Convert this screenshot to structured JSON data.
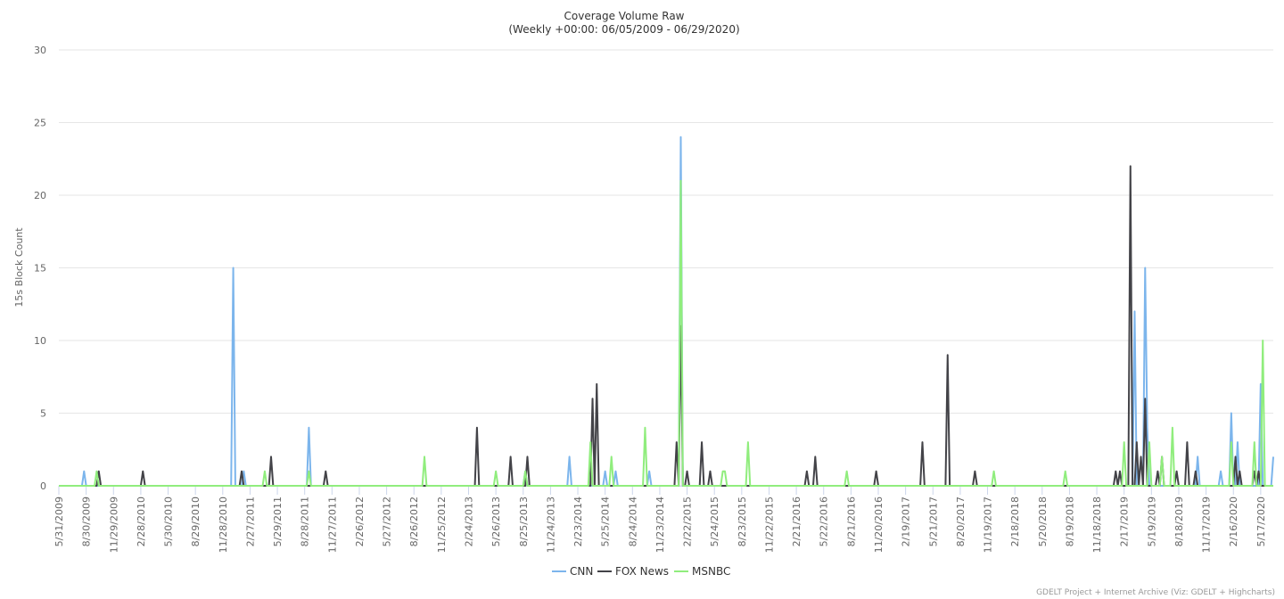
{
  "chart_data": {
    "type": "line",
    "title": "Coverage Volume Raw",
    "subtitle": "(Weekly +00:00: 06/05/2009 - 06/29/2020)",
    "y_label": "15s Block Count",
    "credits": "GDELT Project + Internet Archive (Viz: GDELT + Highcharts)",
    "grid": true,
    "legend": "bottom",
    "ylim": [
      0,
      30
    ],
    "yticks": [
      0,
      5,
      10,
      15,
      20,
      25,
      30
    ],
    "xlim": [
      "5/31/2009",
      "6/28/2020"
    ],
    "xticks": [
      "5/31/2009",
      "8/30/2009",
      "11/29/2009",
      "2/28/2010",
      "5/30/2010",
      "8/29/2010",
      "11/28/2010",
      "2/27/2011",
      "5/29/2011",
      "8/28/2011",
      "11/27/2011",
      "2/26/2012",
      "5/27/2012",
      "8/26/2012",
      "11/25/2012",
      "2/24/2013",
      "5/26/2013",
      "8/25/2013",
      "11/24/2013",
      "2/23/2014",
      "5/25/2014",
      "8/24/2014",
      "11/23/2014",
      "2/22/2015",
      "5/24/2015",
      "8/23/2015",
      "11/22/2015",
      "2/21/2016",
      "5/22/2016",
      "8/21/2016",
      "11/20/2016",
      "2/19/2017",
      "5/21/2017",
      "8/20/2017",
      "11/19/2017",
      "2/18/2018",
      "5/20/2018",
      "8/19/2018",
      "11/18/2018",
      "2/17/2019",
      "5/19/2019",
      "8/18/2019",
      "11/17/2019",
      "2/16/2020",
      "5/17/2020"
    ],
    "x": [
      "5/31/2009",
      "8/16/2009",
      "8/23/2009",
      "8/30/2009",
      "9/27/2009",
      "10/4/2009",
      "10/11/2009",
      "10/18/2009",
      "2/28/2010",
      "3/7/2010",
      "3/14/2010",
      "12/26/2010",
      "1/2/2011",
      "1/9/2011",
      "1/23/2011",
      "1/30/2011",
      "2/6/2011",
      "2/13/2011",
      "4/10/2011",
      "4/17/2011",
      "4/24/2011",
      "5/1/2011",
      "5/8/2011",
      "5/15/2011",
      "9/4/2011",
      "9/11/2011",
      "9/18/2011",
      "10/30/2011",
      "11/6/2011",
      "11/13/2011",
      "9/23/2012",
      "9/30/2012",
      "10/7/2012",
      "3/17/2013",
      "3/24/2013",
      "3/31/2013",
      "5/19/2013",
      "5/26/2013",
      "6/2/2013",
      "7/7/2013",
      "7/14/2013",
      "7/21/2013",
      "8/25/2013",
      "9/1/2013",
      "9/8/2013",
      "9/15/2013",
      "1/19/2014",
      "1/26/2014",
      "2/2/2014",
      "3/30/2014",
      "4/6/2014",
      "4/13/2014",
      "4/20/2014",
      "4/27/2014",
      "5/4/2014",
      "5/18/2014",
      "5/25/2014",
      "6/1/2014",
      "6/8/2014",
      "6/15/2014",
      "6/22/2014",
      "6/29/2014",
      "7/6/2014",
      "9/28/2014",
      "10/5/2014",
      "10/12/2014",
      "10/19/2014",
      "10/26/2014",
      "1/11/2015",
      "1/18/2015",
      "1/25/2015",
      "2/1/2015",
      "2/8/2015",
      "2/15/2015",
      "2/22/2015",
      "3/1/2015",
      "4/5/2015",
      "4/12/2015",
      "4/19/2015",
      "5/3/2015",
      "5/10/2015",
      "5/17/2015",
      "6/14/2015",
      "6/21/2015",
      "6/28/2015",
      "7/5/2015",
      "9/6/2015",
      "9/13/2015",
      "9/20/2015",
      "3/20/2016",
      "3/27/2016",
      "4/3/2016",
      "4/17/2016",
      "4/24/2016",
      "5/1/2016",
      "7/31/2016",
      "8/7/2016",
      "8/14/2016",
      "11/6/2016",
      "11/13/2016",
      "11/20/2016",
      "4/9/2017",
      "4/16/2017",
      "4/23/2017",
      "7/2/2017",
      "7/9/2017",
      "7/16/2017",
      "10/1/2017",
      "10/8/2017",
      "10/15/2017",
      "12/3/2017",
      "12/10/2017",
      "12/17/2017",
      "7/29/2018",
      "8/5/2018",
      "8/12/2018",
      "1/13/2019",
      "1/20/2019",
      "1/27/2019",
      "2/3/2019",
      "2/10/2019",
      "2/17/2019",
      "2/24/2019",
      "3/3/2019",
      "3/10/2019",
      "3/17/2019",
      "3/24/2019",
      "3/31/2019",
      "4/7/2019",
      "4/14/2019",
      "4/21/2019",
      "4/28/2019",
      "5/5/2019",
      "5/12/2019",
      "5/19/2019",
      "6/2/2019",
      "6/9/2019",
      "6/16/2019",
      "6/23/2019",
      "6/30/2019",
      "7/21/2019",
      "7/28/2019",
      "8/4/2019",
      "8/11/2019",
      "8/18/2019",
      "9/8/2019",
      "9/15/2019",
      "9/22/2019",
      "10/6/2019",
      "10/13/2019",
      "10/20/2019",
      "10/27/2019",
      "12/29/2019",
      "1/5/2020",
      "1/12/2020",
      "2/2/2020",
      "2/9/2020",
      "2/16/2020",
      "2/23/2020",
      "3/1/2020",
      "3/8/2020",
      "3/15/2020",
      "4/19/2020",
      "4/26/2020",
      "5/3/2020",
      "5/10/2020",
      "5/17/2020",
      "5/24/2020",
      "5/31/2020",
      "6/21/2020",
      "6/28/2020"
    ],
    "series": [
      {
        "name": "CNN",
        "color": "#7cb5ec",
        "values": [
          0,
          0,
          1,
          0,
          0,
          0,
          0,
          0,
          0,
          0,
          0,
          0,
          15,
          0,
          0,
          0,
          1,
          0,
          0,
          0,
          0,
          0,
          0,
          0,
          0,
          4,
          0,
          0,
          0,
          0,
          0,
          0,
          0,
          0,
          0,
          0,
          0,
          0,
          0,
          0,
          0,
          0,
          0,
          1,
          0,
          0,
          0,
          2,
          0,
          0,
          0,
          0,
          0,
          0,
          0,
          0,
          1,
          0,
          0,
          0,
          0,
          1,
          0,
          0,
          0,
          0,
          1,
          0,
          0,
          0,
          0,
          24,
          0,
          0,
          0,
          0,
          0,
          0,
          0,
          0,
          0,
          0,
          0,
          0,
          0,
          0,
          0,
          0,
          0,
          0,
          0,
          0,
          0,
          0,
          0,
          0,
          0,
          0,
          0,
          0,
          0,
          0,
          0,
          0,
          0,
          0,
          0,
          0,
          0,
          0,
          0,
          0,
          0,
          0,
          0,
          0,
          0,
          0,
          0,
          0,
          0,
          0,
          0,
          0,
          0,
          0,
          12,
          0,
          0,
          0,
          0,
          15,
          4,
          0,
          0,
          0,
          0,
          0,
          0,
          0,
          0,
          0,
          0,
          0,
          0,
          0,
          0,
          0,
          0,
          0,
          2,
          0,
          0,
          1,
          0,
          0,
          5,
          0,
          0,
          3,
          0,
          0,
          0,
          0,
          0,
          0,
          7,
          0,
          0,
          0,
          2
        ]
      },
      {
        "name": "FOX News",
        "color": "#434348",
        "values": [
          0,
          0,
          0,
          0,
          0,
          0,
          1,
          0,
          0,
          1,
          0,
          0,
          0,
          0,
          0,
          1,
          0,
          0,
          0,
          0,
          0,
          0,
          2,
          0,
          0,
          0,
          0,
          0,
          1,
          0,
          0,
          0,
          0,
          0,
          4,
          0,
          0,
          0,
          0,
          0,
          2,
          0,
          0,
          0,
          2,
          0,
          0,
          0,
          0,
          0,
          0,
          6,
          0,
          7,
          0,
          0,
          0,
          0,
          0,
          0,
          0,
          0,
          0,
          0,
          0,
          0,
          0,
          0,
          0,
          3,
          0,
          11,
          0,
          0,
          1,
          0,
          0,
          3,
          0,
          0,
          1,
          0,
          0,
          0,
          0,
          0,
          0,
          0,
          0,
          0,
          1,
          0,
          0,
          2,
          0,
          0,
          0,
          0,
          0,
          1,
          0,
          0,
          3,
          0,
          0,
          9,
          0,
          0,
          1,
          0,
          0,
          0,
          0,
          0,
          0,
          0,
          0,
          1,
          0,
          1,
          0,
          0,
          0,
          0,
          22,
          0,
          0,
          3,
          0,
          2,
          0,
          6,
          0,
          0,
          0,
          0,
          1,
          0,
          2,
          0,
          0,
          0,
          0,
          1,
          0,
          0,
          3,
          0,
          0,
          1,
          0,
          0,
          0,
          0,
          0,
          0,
          0,
          0,
          2,
          0,
          1,
          0,
          0,
          1,
          0,
          1,
          0,
          0,
          0,
          0,
          0
        ]
      },
      {
        "name": "MSNBC",
        "color": "#90ed7d",
        "values": [
          0,
          0,
          0,
          0,
          0,
          1,
          0,
          0,
          0,
          0,
          0,
          0,
          0,
          0,
          0,
          0,
          0,
          0,
          0,
          1,
          0,
          0,
          0,
          0,
          0,
          1,
          0,
          0,
          0,
          0,
          0,
          2,
          0,
          0,
          0,
          0,
          0,
          1,
          0,
          0,
          0,
          0,
          0,
          1,
          0,
          0,
          0,
          0,
          0,
          0,
          3,
          0,
          0,
          0,
          0,
          0,
          0,
          0,
          0,
          2,
          0,
          0,
          0,
          0,
          4,
          0,
          0,
          0,
          0,
          0,
          0,
          21,
          0,
          0,
          0,
          0,
          0,
          0,
          0,
          0,
          0,
          0,
          0,
          1,
          1,
          0,
          0,
          3,
          0,
          0,
          0,
          0,
          0,
          0,
          0,
          0,
          1,
          0,
          0,
          0,
          0,
          0,
          0,
          0,
          0,
          0,
          0,
          0,
          0,
          0,
          0,
          1,
          0,
          0,
          1,
          0,
          0,
          0,
          0,
          0,
          0,
          3,
          0,
          0,
          0,
          0,
          0,
          0,
          0,
          0,
          0,
          0,
          0,
          3,
          0,
          0,
          0,
          0,
          2,
          0,
          0,
          4,
          0,
          0,
          0,
          0,
          0,
          0,
          0,
          0,
          0,
          0,
          0,
          0,
          0,
          0,
          3,
          0,
          0,
          0,
          0,
          0,
          0,
          3,
          0,
          0,
          0,
          10,
          0,
          0,
          0
        ]
      }
    ]
  }
}
